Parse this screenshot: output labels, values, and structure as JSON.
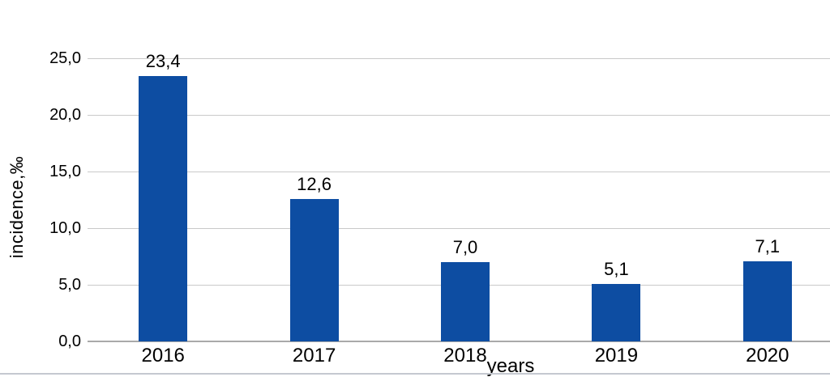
{
  "chart_data": {
    "type": "bar",
    "title": "",
    "categories": [
      "2016",
      "2017",
      "2018",
      "2019",
      "2020"
    ],
    "values": [
      23.4,
      12.6,
      7.0,
      5.1,
      7.1
    ],
    "value_labels": [
      "23,4",
      "12,6",
      "7,0",
      "5,1",
      "7,1"
    ],
    "xlabel": "years",
    "ylabel": "incidence,‰",
    "ylim": [
      0,
      25
    ],
    "ytick_values": [
      0,
      5,
      10,
      15,
      20,
      25
    ],
    "ytick_labels": [
      "0,0",
      "5,0",
      "10,0",
      "15,0",
      "20,0",
      "25,0"
    ],
    "grid": "horizontal",
    "legend": "none",
    "decimal_separator": ",",
    "colors": {
      "bar": "#0d4da2",
      "gridline": "#c9c9c9",
      "axis_line": "#a9a9a9",
      "text": "#000000",
      "page_bottom_border": "#c5c9d0"
    }
  }
}
